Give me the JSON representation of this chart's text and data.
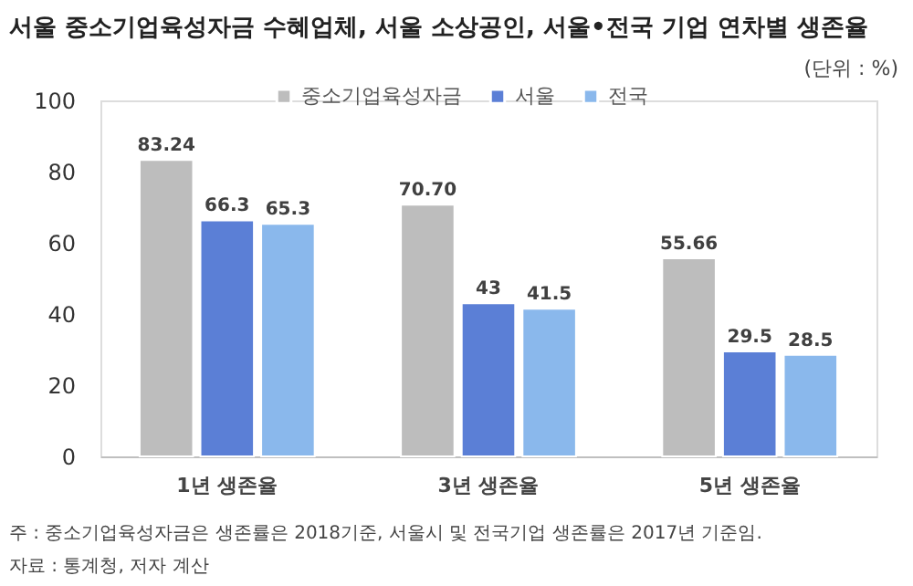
{
  "chart_data": {
    "type": "bar",
    "title": "서울 중소기업육성자금 수혜업체, 서울 소상공인, 서울•전국 기업 연차별 생존율",
    "categories": [
      "1년 생존율",
      "3년 생존율",
      "5년 생존율"
    ],
    "series": [
      {
        "name": "중소기업육성자금",
        "color": "#bdbdbd",
        "values": [
          83.24,
          70.7,
          55.66
        ],
        "value_labels": [
          "83.24",
          "70.70",
          "55.66"
        ]
      },
      {
        "name": "서울",
        "color": "#5b7fd6",
        "values": [
          66.3,
          43,
          29.5
        ],
        "value_labels": [
          "66.3",
          "43",
          "29.5"
        ]
      },
      {
        "name": "전국",
        "color": "#8ab8ec",
        "values": [
          65.3,
          41.5,
          28.5
        ],
        "value_labels": [
          "65.3",
          "41.5",
          "28.5"
        ]
      }
    ],
    "ylim": [
      0,
      100
    ],
    "yticks": [
      0,
      20,
      40,
      60,
      80,
      100
    ],
    "grid": false,
    "legend": "top",
    "annotations": [
      "(단위 : %)",
      "주 : 중소기업육성자금은 생존률은 2018기준, 서울시 및 전국기업 생존률은 2017년 기준임.",
      "자료 : 통계청, 저자 계산"
    ]
  }
}
